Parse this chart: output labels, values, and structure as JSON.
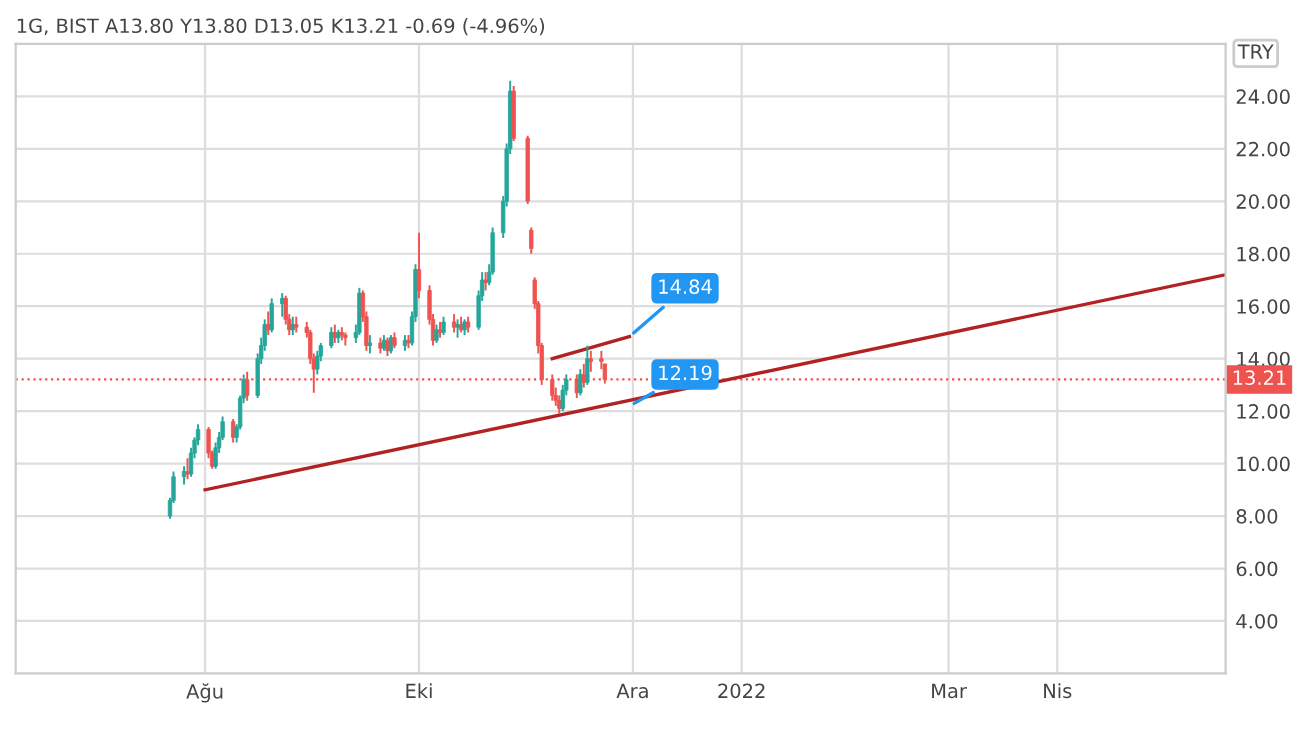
{
  "chart_data": {
    "type": "candlestick",
    "title": "1G, BIST A13.80 Y13.80 D13.05 K13.21 -0.69 (-4.96%)",
    "ylabel": "TRY",
    "xlim": [
      "2021-06-08",
      "2022-05-19"
    ],
    "xticks": [
      {
        "value": "2021-08-01",
        "label": "Ağu"
      },
      {
        "value": "2021-10-01",
        "label": "Eki"
      },
      {
        "value": "2021-12-01",
        "label": "Ara"
      },
      {
        "value": "2022-01-01",
        "label": "2022"
      },
      {
        "value": "2022-03-01",
        "label": "Mar"
      },
      {
        "value": "2022-04-01",
        "label": "Nis"
      }
    ],
    "ylim": [
      2.0,
      26.0
    ],
    "yticks": [
      {
        "value": 4,
        "label": "4.00"
      },
      {
        "value": 6,
        "label": "6.00"
      },
      {
        "value": 8,
        "label": "8.00"
      },
      {
        "value": 10,
        "label": "10.00"
      },
      {
        "value": 12,
        "label": "12.00"
      },
      {
        "value": 14,
        "label": "14.00"
      },
      {
        "value": 16,
        "label": "16.00"
      },
      {
        "value": 18,
        "label": "18.00"
      },
      {
        "value": 20,
        "label": "20.00"
      },
      {
        "value": 22,
        "label": "22.00"
      },
      {
        "value": 24,
        "label": "24.00"
      }
    ],
    "grid": true,
    "colors": [
      "#26a69a",
      "#26a69a",
      "#26a69a",
      "#ef5350",
      "#26a69a",
      "#26a69a",
      "#26a69a",
      "#ef5350",
      "#ef5350",
      "#26a69a",
      "#26a69a",
      "#26a69a",
      "#ef5350",
      "#26a69a",
      "#26a69a",
      "#26a69a",
      "#ef5350",
      "#26a69a",
      "#26a69a",
      "#26a69a",
      "#ef5350",
      "#26a69a",
      "#26a69a",
      "#ef5350",
      "#ef5350",
      "#26a69a",
      "#ef5350",
      "#ef5350",
      "#ef5350",
      "#ef5350",
      "#26a69a",
      "#26a69a",
      "#26a69a",
      "#ef5350",
      "#26a69a",
      "#ef5350",
      "#ef5350",
      "#26a69a",
      "#26a69a",
      "#ef5350",
      "#ef5350",
      "#26a69a",
      "#ef5350",
      "#26a69a",
      "#ef5350",
      "#26a69a",
      "#ef5350",
      "#26a69a",
      "#ef5350",
      "#26a69a",
      "#26a69a",
      "#ef5350",
      "#ef5350",
      "#ef5350",
      "#26a69a",
      "#ef5350",
      "#26a69a",
      "#ef5350",
      "#26a69a",
      "#ef5350",
      "#26a69a",
      "#ef5350",
      "#26a69a",
      "#26a69a",
      "#ef5350",
      "#26a69a",
      "#26a69a",
      "#26a69a",
      "#26a69a",
      "#26a69a",
      "#ef5350",
      "#ef5350",
      "#ef5350",
      "#ef5350",
      "#ef5350",
      "#ef5350",
      "#ef5350",
      "#ef5350",
      "#ef5350",
      "#26a69a",
      "#26a69a",
      "#ef5350",
      "#26a69a",
      "#ef5350",
      "#26a69a",
      "#ef5350",
      "#ef5350",
      "#ef5350"
    ],
    "x": [
      "2021-07-22",
      "2021-07-23",
      "2021-07-26",
      "2021-07-27",
      "2021-07-28",
      "2021-07-29",
      "2021-07-30",
      "2021-08-02",
      "2021-08-03",
      "2021-08-04",
      "2021-08-05",
      "2021-08-06",
      "2021-08-09",
      "2021-08-10",
      "2021-08-11",
      "2021-08-12",
      "2021-08-13",
      "2021-08-16",
      "2021-08-17",
      "2021-08-18",
      "2021-08-19",
      "2021-08-20",
      "2021-08-23",
      "2021-08-24",
      "2021-08-25",
      "2021-08-26",
      "2021-08-27",
      "2021-08-30",
      "2021-08-31",
      "2021-09-01",
      "2021-09-02",
      "2021-09-03",
      "2021-09-06",
      "2021-09-07",
      "2021-09-08",
      "2021-09-09",
      "2021-09-10",
      "2021-09-13",
      "2021-09-14",
      "2021-09-15",
      "2021-09-16",
      "2021-09-17",
      "2021-09-20",
      "2021-09-21",
      "2021-09-22",
      "2021-09-23",
      "2021-09-24",
      "2021-09-27",
      "2021-09-28",
      "2021-09-29",
      "2021-09-30",
      "2021-10-01",
      "2021-10-04",
      "2021-10-05",
      "2021-10-06",
      "2021-10-07",
      "2021-10-08",
      "2021-10-11",
      "2021-10-12",
      "2021-10-13",
      "2021-10-14",
      "2021-10-15",
      "2021-10-18",
      "2021-10-19",
      "2021-10-20",
      "2021-10-21",
      "2021-10-22",
      "2021-10-25",
      "2021-10-26",
      "2021-10-27",
      "2021-10-28",
      "2021-11-01",
      "2021-11-02",
      "2021-11-03",
      "2021-11-04",
      "2021-11-05",
      "2021-11-08",
      "2021-11-09",
      "2021-11-10",
      "2021-11-11",
      "2021-11-12",
      "2021-11-15",
      "2021-11-16",
      "2021-11-17",
      "2021-11-18",
      "2021-11-19",
      "2021-11-22",
      "2021-11-23"
    ],
    "ohlc": [
      [
        8.0,
        8.7,
        7.9,
        8.6
      ],
      [
        8.6,
        9.7,
        8.5,
        9.5
      ],
      [
        9.5,
        9.9,
        9.2,
        9.7
      ],
      [
        9.7,
        10.2,
        9.4,
        9.6
      ],
      [
        9.6,
        10.6,
        9.5,
        10.4
      ],
      [
        10.4,
        11.0,
        10.2,
        10.9
      ],
      [
        10.9,
        11.5,
        10.7,
        11.3
      ],
      [
        11.3,
        11.4,
        10.2,
        10.4
      ],
      [
        10.4,
        10.5,
        9.8,
        9.9
      ],
      [
        9.9,
        10.8,
        9.8,
        10.6
      ],
      [
        10.6,
        11.2,
        10.4,
        11.0
      ],
      [
        11.0,
        11.8,
        10.9,
        11.6
      ],
      [
        11.6,
        11.7,
        10.8,
        11.0
      ],
      [
        11.0,
        11.5,
        10.8,
        11.4
      ],
      [
        11.4,
        12.6,
        11.3,
        12.5
      ],
      [
        12.5,
        13.4,
        12.3,
        13.2
      ],
      [
        13.2,
        13.5,
        12.4,
        12.6
      ],
      [
        12.6,
        14.2,
        12.5,
        14.0
      ],
      [
        14.0,
        14.8,
        13.8,
        14.5
      ],
      [
        14.5,
        15.5,
        14.3,
        15.3
      ],
      [
        15.3,
        15.8,
        14.9,
        15.1
      ],
      [
        15.1,
        16.3,
        15.0,
        16.1
      ],
      [
        16.1,
        16.5,
        15.6,
        16.3
      ],
      [
        16.3,
        16.4,
        15.3,
        15.5
      ],
      [
        15.5,
        15.7,
        14.9,
        15.1
      ],
      [
        15.1,
        15.6,
        14.9,
        15.3
      ],
      [
        15.3,
        15.6,
        15.0,
        15.2
      ],
      [
        15.2,
        15.4,
        14.8,
        15.0
      ],
      [
        15.0,
        15.1,
        13.8,
        14.0
      ],
      [
        14.0,
        14.2,
        12.7,
        13.6
      ],
      [
        13.6,
        14.3,
        13.4,
        14.1
      ],
      [
        14.1,
        14.6,
        13.9,
        14.5
      ],
      [
        14.5,
        15.2,
        14.4,
        15.0
      ],
      [
        15.0,
        15.3,
        14.6,
        14.8
      ],
      [
        14.8,
        15.1,
        14.6,
        15.0
      ],
      [
        15.0,
        15.2,
        14.7,
        14.9
      ],
      [
        14.9,
        15.0,
        14.5,
        14.8
      ],
      [
        14.8,
        15.3,
        14.6,
        15.0
      ],
      [
        15.0,
        16.7,
        14.9,
        16.5
      ],
      [
        16.5,
        16.6,
        15.4,
        15.6
      ],
      [
        15.6,
        15.8,
        14.3,
        14.5
      ],
      [
        14.5,
        14.9,
        14.2,
        14.6
      ],
      [
        14.6,
        14.8,
        14.2,
        14.4
      ],
      [
        14.4,
        14.9,
        14.3,
        14.7
      ],
      [
        14.7,
        14.8,
        14.1,
        14.3
      ],
      [
        14.3,
        14.9,
        14.2,
        14.8
      ],
      [
        14.8,
        15.0,
        14.4,
        14.5
      ],
      [
        14.5,
        14.9,
        14.3,
        14.7
      ],
      [
        14.7,
        14.9,
        14.4,
        14.6
      ],
      [
        14.6,
        15.8,
        14.5,
        15.6
      ],
      [
        15.6,
        17.6,
        15.4,
        17.4
      ],
      [
        17.4,
        18.8,
        16.3,
        16.6
      ],
      [
        16.6,
        16.8,
        15.3,
        15.5
      ],
      [
        15.5,
        15.7,
        14.5,
        14.7
      ],
      [
        14.7,
        15.3,
        14.6,
        15.1
      ],
      [
        15.1,
        15.4,
        14.8,
        15.0
      ],
      [
        15.0,
        15.6,
        14.9,
        15.4
      ],
      [
        15.4,
        15.7,
        15.0,
        15.2
      ],
      [
        15.2,
        15.5,
        14.8,
        15.3
      ],
      [
        15.3,
        15.6,
        15.0,
        15.1
      ],
      [
        15.1,
        15.5,
        14.9,
        15.4
      ],
      [
        15.4,
        15.6,
        15.0,
        15.2
      ],
      [
        15.2,
        16.6,
        15.1,
        16.4
      ],
      [
        16.4,
        17.3,
        16.2,
        17.0
      ],
      [
        17.0,
        17.3,
        16.6,
        16.9
      ],
      [
        16.9,
        17.6,
        16.8,
        17.3
      ],
      [
        17.3,
        19.0,
        17.2,
        18.8
      ],
      [
        18.8,
        20.2,
        18.6,
        20.0
      ],
      [
        20.0,
        22.2,
        19.8,
        22.0
      ],
      [
        22.0,
        24.6,
        21.8,
        24.2
      ],
      [
        24.2,
        24.4,
        22.3,
        22.4
      ],
      [
        22.4,
        22.5,
        19.9,
        20.0
      ],
      [
        18.9,
        19.0,
        18.0,
        18.2
      ],
      [
        17.0,
        17.1,
        15.9,
        16.1
      ],
      [
        16.1,
        16.2,
        14.2,
        14.5
      ],
      [
        14.5,
        14.6,
        13.0,
        13.2
      ],
      [
        13.2,
        13.4,
        12.4,
        12.6
      ],
      [
        12.6,
        12.9,
        12.2,
        12.4
      ],
      [
        12.4,
        12.6,
        11.9,
        12.1
      ],
      [
        12.1,
        13.0,
        12.0,
        12.8
      ],
      [
        12.8,
        13.4,
        12.6,
        13.2
      ],
      [
        13.2,
        13.4,
        12.5,
        12.7
      ],
      [
        12.7,
        13.6,
        12.6,
        13.4
      ],
      [
        13.4,
        13.8,
        12.9,
        13.1
      ],
      [
        13.1,
        14.5,
        13.0,
        14.0
      ],
      [
        14.0,
        14.3,
        13.5,
        13.9
      ],
      [
        14.0,
        14.3,
        13.6,
        13.9
      ],
      [
        13.8,
        13.8,
        13.05,
        13.21
      ]
    ],
    "series": [
      {
        "type": "line",
        "color": "#b22222",
        "x": [
          "2021-08-01",
          "2022-05-19"
        ],
        "values": [
          9.0,
          17.2
        ]
      },
      {
        "type": "line",
        "color": "#b22222",
        "x": [
          "2021-11-08",
          "2021-11-30"
        ],
        "values": [
          14.0,
          14.84
        ]
      }
    ],
    "ref_lines": [
      {
        "axis": "y",
        "value": 13.21,
        "label": "13.21",
        "color": "#ef5350",
        "line_style": "dotted"
      }
    ],
    "annotations": [
      {
        "text": "14.84",
        "x": "2021-11-30",
        "y": 14.84
      },
      {
        "text": "12.19",
        "x": "2021-11-30",
        "y": 12.19
      }
    ]
  }
}
